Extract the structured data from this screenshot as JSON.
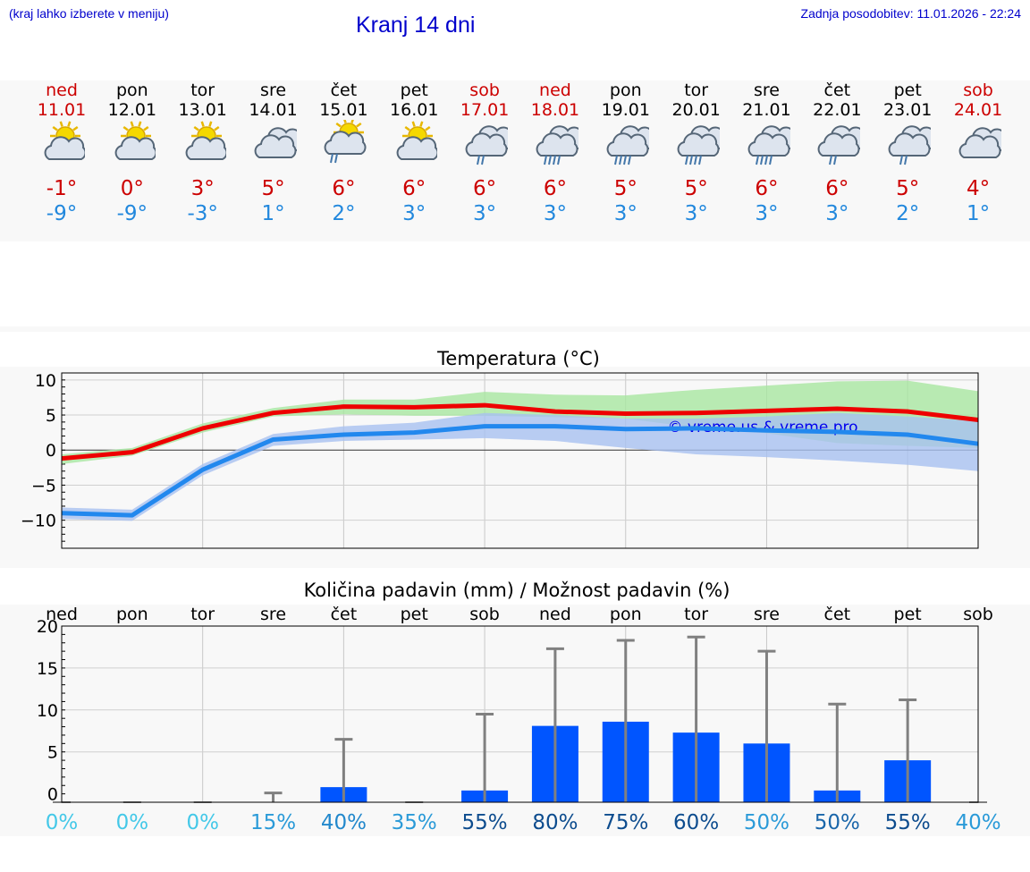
{
  "header": {
    "left_note": "(kraj lahko izberete v meniju)",
    "title": "Kranj 14 dni",
    "last_update": "Zadnja posodobitev: 11.01.2026 - 22:24"
  },
  "colors": {
    "title_blue": "#0000cc",
    "max_red": "#cc0000",
    "min_blue": "#2288dd",
    "bar_blue": "#0055ff",
    "green_band": "#a8e6a0",
    "blue_band": "#a8c0f0"
  },
  "days": [
    {
      "name": "ned",
      "date": "11.01",
      "weekend": true,
      "icon": "sun-partly-cloudy-icon",
      "tmax": "-1°",
      "tmin": "-9°"
    },
    {
      "name": "pon",
      "date": "12.01",
      "weekend": false,
      "icon": "sun-partly-cloudy-icon",
      "tmax": "0°",
      "tmin": "-9°"
    },
    {
      "name": "tor",
      "date": "13.01",
      "weekend": false,
      "icon": "sun-partly-cloudy-icon",
      "tmax": "3°",
      "tmin": "-3°"
    },
    {
      "name": "sre",
      "date": "14.01",
      "weekend": false,
      "icon": "cloudy-icon",
      "tmax": "5°",
      "tmin": "1°"
    },
    {
      "name": "čet",
      "date": "15.01",
      "weekend": false,
      "icon": "sun-cloud-light-rain-icon",
      "tmax": "6°",
      "tmin": "2°"
    },
    {
      "name": "pet",
      "date": "16.01",
      "weekend": false,
      "icon": "sun-partly-cloudy-icon",
      "tmax": "6°",
      "tmin": "3°"
    },
    {
      "name": "sob",
      "date": "17.01",
      "weekend": true,
      "icon": "cloud-light-rain-icon",
      "tmax": "6°",
      "tmin": "3°"
    },
    {
      "name": "ned",
      "date": "18.01",
      "weekend": true,
      "icon": "cloud-heavy-rain-icon",
      "tmax": "6°",
      "tmin": "3°"
    },
    {
      "name": "pon",
      "date": "19.01",
      "weekend": false,
      "icon": "cloud-heavy-rain-icon",
      "tmax": "5°",
      "tmin": "3°"
    },
    {
      "name": "tor",
      "date": "20.01",
      "weekend": false,
      "icon": "cloud-heavy-rain-icon",
      "tmax": "5°",
      "tmin": "3°"
    },
    {
      "name": "sre",
      "date": "21.01",
      "weekend": false,
      "icon": "cloud-heavy-rain-icon",
      "tmax": "6°",
      "tmin": "3°"
    },
    {
      "name": "čet",
      "date": "22.01",
      "weekend": false,
      "icon": "cloud-light-rain-icon",
      "tmax": "6°",
      "tmin": "3°"
    },
    {
      "name": "pet",
      "date": "23.01",
      "weekend": false,
      "icon": "cloud-light-rain-icon",
      "tmax": "5°",
      "tmin": "2°"
    },
    {
      "name": "sob",
      "date": "24.01",
      "weekend": true,
      "icon": "cloudy-icon",
      "tmax": "4°",
      "tmin": "1°"
    }
  ],
  "chart_data": [
    {
      "type": "line",
      "title": "Temperatura (°C)",
      "watermark": "© vreme.us & vreme.pro",
      "x": [
        0,
        1,
        2,
        3,
        4,
        5,
        6,
        7,
        8,
        9,
        10,
        11,
        12,
        13
      ],
      "ylim": [
        -14,
        11
      ],
      "yticks": [
        10,
        5,
        0,
        -5,
        -10
      ],
      "ytick_labels": [
        "10",
        "5",
        "0",
        "−5",
        "−10"
      ],
      "grid": true,
      "series": [
        {
          "name": "max",
          "color": "#ee0000",
          "values": [
            -1.2,
            -0.3,
            3.1,
            5.3,
            6.2,
            6.1,
            6.4,
            5.5,
            5.2,
            5.3,
            5.6,
            5.9,
            5.5,
            4.3
          ]
        },
        {
          "name": "min",
          "color": "#2288ee",
          "values": [
            -9.0,
            -9.3,
            -2.8,
            1.5,
            2.2,
            2.5,
            3.4,
            3.4,
            3.0,
            3.1,
            2.8,
            2.6,
            2.2,
            0.9
          ]
        }
      ],
      "bands": [
        {
          "name": "max-range",
          "color": "#a8e6a0",
          "upper": [
            -0.6,
            0.3,
            3.8,
            6.0,
            7.2,
            7.2,
            8.3,
            7.9,
            7.8,
            8.6,
            9.2,
            9.8,
            9.9,
            8.4
          ],
          "lower": [
            -2.0,
            -0.8,
            2.5,
            4.8,
            5.1,
            4.9,
            4.9,
            4.7,
            4.5,
            3.2,
            2.4,
            1.0,
            0.6,
            0.3
          ]
        },
        {
          "name": "min-range",
          "color": "#a8c0f0",
          "upper": [
            -8.2,
            -8.5,
            -2.0,
            2.3,
            3.4,
            3.9,
            5.3,
            5.0,
            4.5,
            4.5,
            4.8,
            5.3,
            4.8,
            4.1
          ],
          "lower": [
            -9.8,
            -10.1,
            -3.6,
            0.6,
            1.3,
            1.5,
            1.7,
            1.3,
            0.3,
            -0.6,
            -1.0,
            -1.5,
            -2.1,
            -3.0
          ]
        }
      ]
    },
    {
      "type": "bar",
      "title": "Količina padavin (mm) / Možnost padavin (%)",
      "categories": [
        "ned",
        "pon",
        "tor",
        "sre",
        "čet",
        "pet",
        "sob",
        "ned",
        "pon",
        "tor",
        "sre",
        "čet",
        "pet",
        "sob"
      ],
      "values": [
        0,
        0,
        0,
        0,
        0.8,
        0,
        0.4,
        8.1,
        8.6,
        7.3,
        6.0,
        0.4,
        4.0,
        0
      ],
      "error_max": [
        0,
        0,
        0,
        0.1,
        6.5,
        0,
        9.5,
        17.3,
        18.3,
        18.7,
        17.0,
        10.7,
        11.2,
        0
      ],
      "probability_labels": [
        "0%",
        "0%",
        "0%",
        "15%",
        "40%",
        "35%",
        "55%",
        "80%",
        "75%",
        "60%",
        "50%",
        "50%",
        "55%",
        "40%"
      ],
      "probability_values": [
        0,
        0,
        0,
        15,
        40,
        35,
        55,
        80,
        75,
        60,
        50,
        50,
        55,
        40
      ],
      "ylim": [
        -1,
        20
      ],
      "yticks": [
        20,
        15,
        10,
        5,
        0
      ],
      "ytick_labels": [
        "20",
        "15",
        "10",
        "5",
        "0"
      ],
      "grid": true
    }
  ]
}
